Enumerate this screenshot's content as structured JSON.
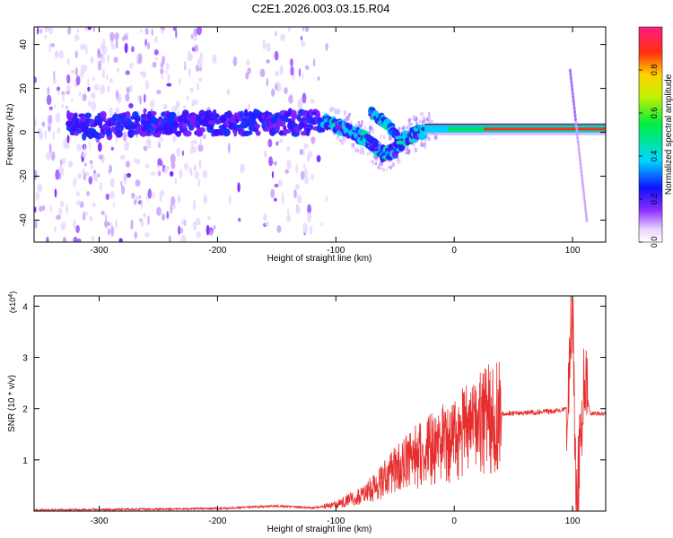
{
  "title": "C2E1.2026.003.03.15.R04",
  "chart_data": [
    {
      "type": "heatmap",
      "xlabel": "Height of straight line (km)",
      "ylabel": "Frequency (Hz)",
      "xlim": [
        -355,
        128
      ],
      "ylim": [
        -50,
        48
      ],
      "xticks": [
        -300,
        -200,
        -100,
        0,
        100
      ],
      "yticks": [
        -40,
        -20,
        0,
        20,
        40
      ],
      "colorbar": {
        "label": "Normalized spectral amplitude",
        "range": [
          0,
          1
        ],
        "ticks": [
          0.0,
          0.2,
          0.4,
          0.6,
          0.8
        ]
      },
      "ridge": [
        {
          "x": -300,
          "y": 3
        },
        {
          "x": -250,
          "y": 4
        },
        {
          "x": -200,
          "y": 4
        },
        {
          "x": -150,
          "y": 4
        },
        {
          "x": -110,
          "y": 5
        },
        {
          "x": -90,
          "y": 1
        },
        {
          "x": -75,
          "y": -3
        },
        {
          "x": -60,
          "y": -10
        },
        {
          "x": -50,
          "y": -8
        },
        {
          "x": -40,
          "y": -2
        },
        {
          "x": -25,
          "y": 1
        },
        {
          "x": 0,
          "y": 1.5
        },
        {
          "x": 50,
          "y": 1.5
        },
        {
          "x": 100,
          "y": 1.5
        },
        {
          "x": 128,
          "y": 1.5
        }
      ],
      "branch": [
        {
          "x": -70,
          "y": 9
        },
        {
          "x": -55,
          "y": 3
        },
        {
          "x": -45,
          "y": -5
        }
      ],
      "streak": [
        {
          "x": 98,
          "y": 28
        },
        {
          "x": 112,
          "y": -40
        }
      ]
    },
    {
      "type": "line",
      "xlabel": "Height of straight line (km)",
      "ylabel": "SNR (10 * v/v)",
      "yscale_label": "(x10",
      "yscale_exp": "4",
      "xlim": [
        -355,
        128
      ],
      "ylim": [
        0,
        4.2
      ],
      "xticks": [
        -300,
        -200,
        -100,
        0,
        100
      ],
      "yticks": [
        1,
        2,
        3,
        4
      ],
      "series": [
        {
          "color": "#e62e2e",
          "points": [
            {
              "x": -355,
              "y": 0.02
            },
            {
              "x": -300,
              "y": 0.03
            },
            {
              "x": -250,
              "y": 0.04
            },
            {
              "x": -200,
              "y": 0.05
            },
            {
              "x": -170,
              "y": 0.08
            },
            {
              "x": -150,
              "y": 0.1
            },
            {
              "x": -120,
              "y": 0.06
            },
            {
              "x": -100,
              "y": 0.12
            },
            {
              "x": -80,
              "y": 0.3
            },
            {
              "x": -60,
              "y": 0.6
            },
            {
              "x": -40,
              "y": 1.0
            },
            {
              "x": -20,
              "y": 1.2
            },
            {
              "x": 0,
              "y": 1.4
            },
            {
              "x": 20,
              "y": 1.7
            },
            {
              "x": 40,
              "y": 1.9
            },
            {
              "x": 60,
              "y": 1.92
            },
            {
              "x": 80,
              "y": 1.94
            },
            {
              "x": 95,
              "y": 2.0
            },
            {
              "x": 100,
              "y": 4.2
            },
            {
              "x": 103,
              "y": 0.1
            },
            {
              "x": 110,
              "y": 2.5
            },
            {
              "x": 115,
              "y": 1.9
            },
            {
              "x": 128,
              "y": 1.9
            }
          ]
        }
      ]
    }
  ]
}
